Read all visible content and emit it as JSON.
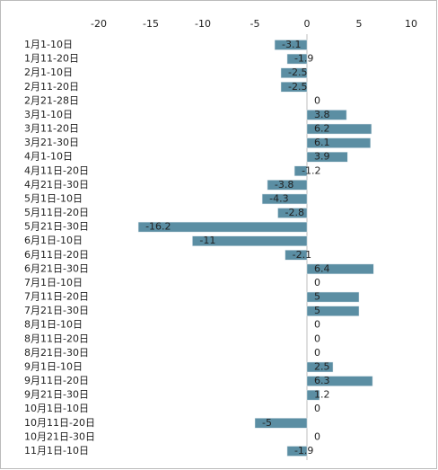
{
  "chart_data": {
    "type": "bar",
    "orientation": "horizontal",
    "categories": [
      "1月1-10日",
      "1月11-20日",
      "2月1-10日",
      "2月11-20日",
      "2月21-28日",
      "3月1-10日",
      "3月11-20日",
      "3月21-30日",
      "4月1-10日",
      "4月11日-20日",
      "4月21日-30日",
      "5月1日-10日",
      "5月11日-20日",
      "5月21日-30日",
      "6月1日-10日",
      "6月11日-20日",
      "6月21日-30日",
      "7月1日-10日",
      "7月11日-20日",
      "7月21日-30日",
      "8月1日-10日",
      "8月11日-20日",
      "8月21日-30日",
      "9月1日-10日",
      "9月11日-20日",
      "9月21日-30日",
      "10月1日-10日",
      "10月11日-20日",
      "10月21日-30日",
      "11月1日-10日"
    ],
    "values": [
      -3.1,
      -1.9,
      -2.5,
      -2.5,
      0,
      3.8,
      6.2,
      6.1,
      3.9,
      -1.2,
      -3.8,
      -4.3,
      -2.8,
      -16.2,
      -11,
      -2.1,
      6.4,
      0,
      5,
      5,
      0,
      0,
      0,
      2.5,
      6.3,
      1.2,
      0,
      -5,
      0,
      -1.9
    ],
    "color": "#5b8ea3",
    "xlim": [
      -20,
      10
    ],
    "xticks": [
      -20,
      -15,
      -10,
      -5,
      0,
      5,
      10
    ]
  }
}
